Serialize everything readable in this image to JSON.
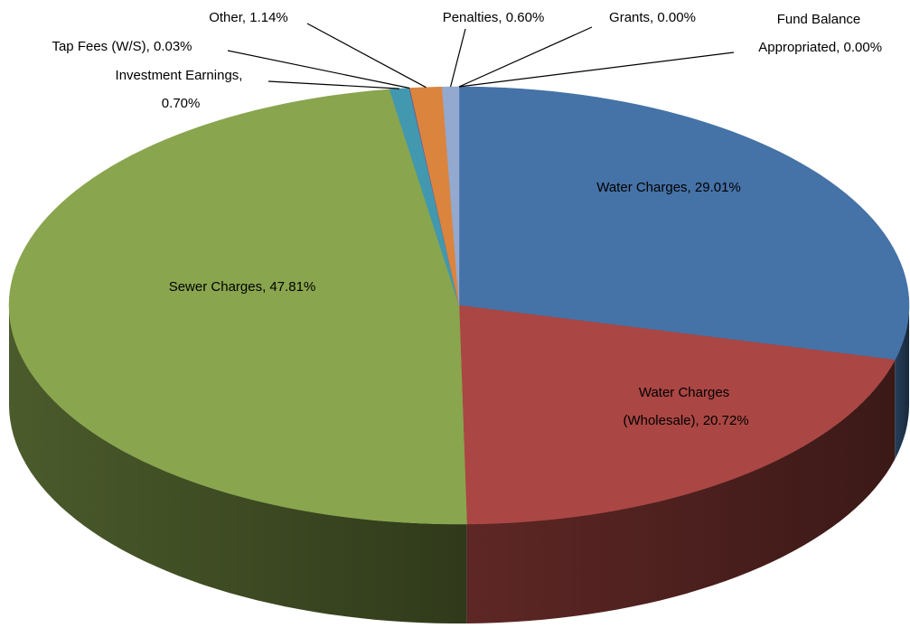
{
  "chart_data": {
    "type": "pie3d",
    "values": [
      29.01,
      20.72,
      47.81,
      0.7,
      0.03,
      1.14,
      0.6,
      0.0,
      0.0
    ],
    "value_labels": [
      "Water Charges, 29.01%",
      "Water Charges (Wholesale), 20.72%",
      "Sewer Charges, 47.81%",
      "Investment Earnings, 0.70%",
      "Tap Fees (W/S), 0.03%",
      "Other, 1.14%",
      "Penalties, 0.60%",
      "Grants, 0.00%",
      "Fund Balance Appropriated, 0.00%"
    ],
    "colors": [
      "#4572a7",
      "#aa4643",
      "#89a54e",
      "#4198af",
      "#71588f",
      "#db843d",
      "#93a9cf",
      "#b9cd96",
      "#a99bbd"
    ]
  }
}
